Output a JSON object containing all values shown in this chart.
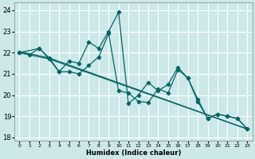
{
  "xlabel": "Humidex (Indice chaleur)",
  "xlim": [
    -0.5,
    23.5
  ],
  "ylim": [
    17.85,
    24.35
  ],
  "yticks": [
    18,
    19,
    20,
    21,
    22,
    23,
    24
  ],
  "xticks": [
    0,
    1,
    2,
    3,
    4,
    5,
    6,
    7,
    8,
    9,
    10,
    11,
    12,
    13,
    14,
    15,
    16,
    17,
    18,
    19,
    20,
    21,
    22,
    23
  ],
  "bg_color": "#cce8e8",
  "grid_color": "#ffffff",
  "line_color": "#006666",
  "series": [
    {
      "comment": "zigzag series 1: starts 0=22, 1=21.9, 2=22.2, goes up to 10=23.9, drops",
      "x": [
        0,
        1,
        2,
        3,
        4,
        5,
        6,
        7,
        8,
        9,
        10,
        11,
        12,
        13,
        14,
        15,
        16,
        17,
        18,
        19,
        20,
        21,
        22,
        23
      ],
      "y": [
        22.0,
        21.9,
        22.2,
        21.75,
        21.1,
        21.6,
        21.5,
        22.5,
        22.2,
        23.0,
        23.9,
        19.6,
        20.0,
        20.6,
        20.2,
        20.5,
        21.3,
        20.8,
        19.7,
        18.9,
        19.1,
        19.0,
        18.9,
        18.4
      ],
      "has_markers": true
    },
    {
      "x": [
        0,
        2,
        3,
        4,
        5,
        6,
        7,
        8,
        9,
        10,
        11,
        12,
        13,
        14,
        15,
        16,
        17,
        18,
        19,
        20,
        21,
        22,
        23
      ],
      "y": [
        22.0,
        22.2,
        21.7,
        21.1,
        21.1,
        21.0,
        21.4,
        21.8,
        22.9,
        20.2,
        20.1,
        19.7,
        19.65,
        20.3,
        20.1,
        21.2,
        20.8,
        19.8,
        18.9,
        19.1,
        19.0,
        18.9,
        18.4
      ],
      "has_markers": true
    },
    {
      "comment": "straight diagonal 1: from 0=22 to 23=18.4",
      "x": [
        0,
        3,
        23
      ],
      "y": [
        22.0,
        21.7,
        18.4
      ],
      "has_markers": false
    },
    {
      "x": [
        0,
        3,
        23
      ],
      "y": [
        22.05,
        21.75,
        18.4
      ],
      "has_markers": false
    }
  ]
}
